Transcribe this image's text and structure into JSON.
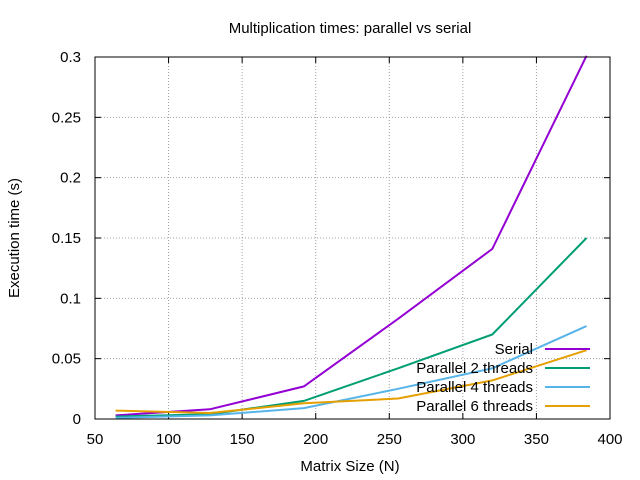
{
  "chart_data": {
    "type": "line",
    "title": "Multiplication times: parallel vs serial",
    "xlabel": "Matrix Size (N)",
    "ylabel": "Execution time (s)",
    "xlim": [
      50,
      400
    ],
    "ylim": [
      0,
      0.3
    ],
    "x_ticks": [
      50,
      100,
      150,
      200,
      250,
      300,
      350,
      400
    ],
    "x_tick_labels": [
      "50",
      "100",
      "150",
      "200",
      "250",
      "300",
      "350",
      "400"
    ],
    "y_ticks": [
      0,
      0.05,
      0.1,
      0.15,
      0.2,
      0.25,
      0.3
    ],
    "y_tick_labels": [
      "0",
      "0.05",
      "0.1",
      "0.15",
      "0.2",
      "0.25",
      "0.3"
    ],
    "grid": true,
    "legend_position": "bottom-right",
    "x": [
      64,
      128,
      192,
      256,
      320,
      384
    ],
    "series": [
      {
        "name": "Serial",
        "color": "#9400d3",
        "values": [
          0.003,
          0.008,
          0.027,
          0.083,
          0.141,
          0.301
        ]
      },
      {
        "name": "Parallel 2 threads",
        "color": "#009e73",
        "values": [
          0.002,
          0.004,
          0.015,
          0.042,
          0.07,
          0.15
        ]
      },
      {
        "name": "Parallel 4 threads",
        "color": "#56b4e9",
        "values": [
          0.001,
          0.003,
          0.009,
          0.025,
          0.042,
          0.077
        ]
      },
      {
        "name": "Parallel 6 threads",
        "color": "#e69f00",
        "values": [
          0.007,
          0.005,
          0.013,
          0.017,
          0.032,
          0.057
        ]
      }
    ]
  }
}
